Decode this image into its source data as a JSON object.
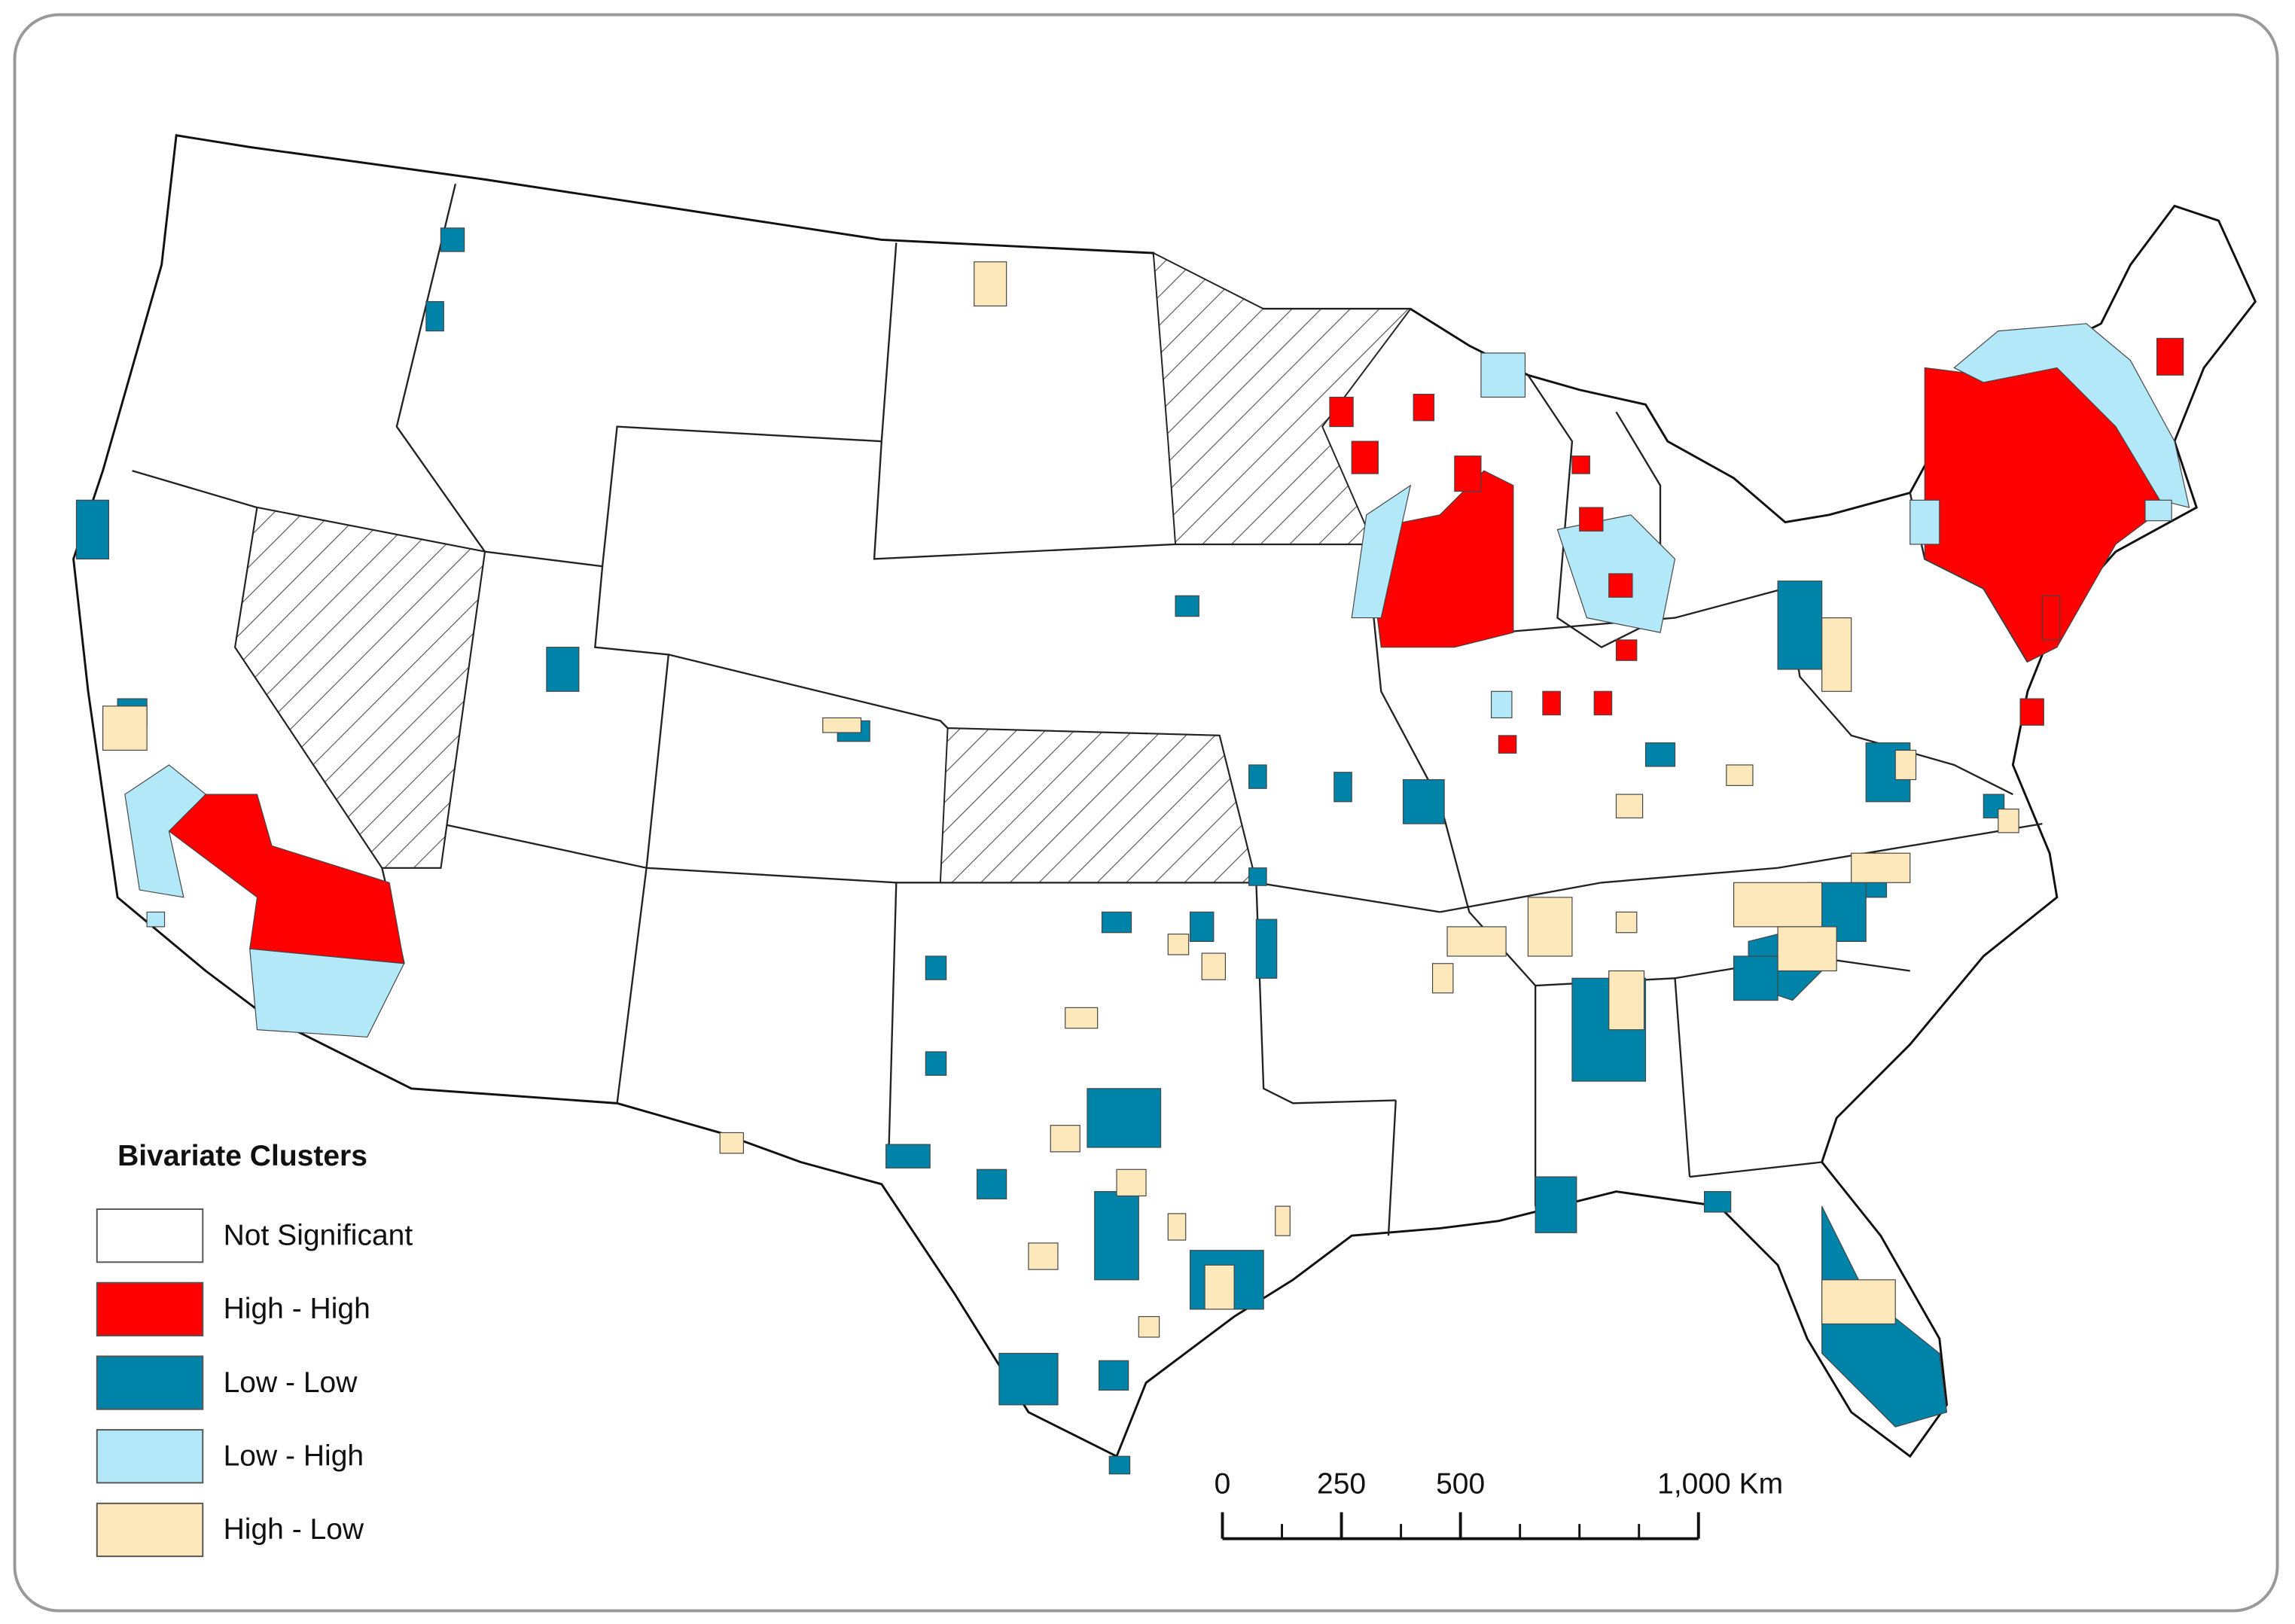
{
  "legend": {
    "title": "Bivariate Clusters",
    "items": [
      {
        "label": "Not Significant",
        "color": "#ffffff"
      },
      {
        "label": "High - High",
        "color": "#ff0000"
      },
      {
        "label": "Low - Low",
        "color": "#0083a8"
      },
      {
        "label": "Low - High",
        "color": "#b3e8f8"
      },
      {
        "label": "High - Low",
        "color": "#fde8bb"
      }
    ]
  },
  "scale_bar": {
    "ticks": [
      0,
      250,
      500,
      {
        "value": 1000,
        "label": "1,000 Km"
      }
    ]
  }
}
